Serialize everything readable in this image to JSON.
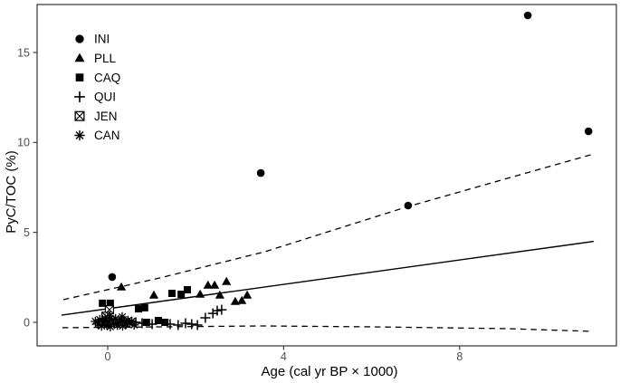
{
  "colors": {
    "marker": "#000000",
    "line": "#000000",
    "axis_text": "#4d4d4d",
    "panel_border": "#333333",
    "background": "#ffffff"
  },
  "chart_data": {
    "type": "scatter",
    "title": "",
    "xlabel": "Age (cal yr BP × 1000)",
    "ylabel": "PyC/TOC (%)",
    "x_ticks": [
      0,
      4,
      8
    ],
    "y_ticks": [
      0,
      5,
      10,
      15
    ],
    "xlim": [
      -1.6,
      11.56
    ],
    "ylim": [
      -1.31,
      17.66
    ],
    "grid": false,
    "legend_position": "inside-top-left",
    "series": [
      {
        "name": "INI",
        "marker": "filled-circle",
        "points": [
          [
            0.1,
            2.52
          ],
          [
            3.48,
            8.3
          ],
          [
            6.83,
            6.49
          ],
          [
            9.55,
            17.06
          ],
          [
            10.93,
            10.62
          ]
        ]
      },
      {
        "name": "PLL",
        "marker": "filled-triangle",
        "points": [
          [
            0.31,
            1.96
          ],
          [
            1.05,
            1.51
          ],
          [
            2.1,
            1.56
          ],
          [
            2.28,
            2.06
          ],
          [
            2.43,
            2.06
          ],
          [
            2.55,
            1.51
          ],
          [
            2.7,
            2.26
          ],
          [
            2.9,
            1.16
          ],
          [
            3.05,
            1.21
          ],
          [
            3.17,
            1.51
          ]
        ]
      },
      {
        "name": "CAQ",
        "marker": "filled-square",
        "points": [
          [
            -0.12,
            1.06
          ],
          [
            0.06,
            1.06
          ],
          [
            0.7,
            0.75
          ],
          [
            0.84,
            0.81
          ],
          [
            1.46,
            1.61
          ],
          [
            1.67,
            1.56
          ],
          [
            1.81,
            1.81
          ],
          [
            0.88,
            0.0
          ],
          [
            1.15,
            0.1
          ],
          [
            1.3,
            0.0
          ]
        ]
      },
      {
        "name": "QUI",
        "marker": "plus",
        "points": [
          [
            0.64,
            0.0
          ],
          [
            0.78,
            -0.05
          ],
          [
            1.01,
            -0.1
          ],
          [
            1.42,
            -0.1
          ],
          [
            1.6,
            -0.15
          ],
          [
            1.77,
            -0.05
          ],
          [
            1.91,
            -0.1
          ],
          [
            2.04,
            -0.15
          ],
          [
            2.22,
            0.25
          ],
          [
            2.39,
            0.5
          ],
          [
            2.49,
            0.65
          ],
          [
            2.59,
            0.7
          ]
        ]
      },
      {
        "name": "JEN",
        "marker": "boxed-x",
        "points": [
          [
            0.04,
            0.7
          ],
          [
            -0.04,
            0.33
          ]
        ]
      },
      {
        "name": "CAN",
        "marker": "asterisk",
        "points": [
          [
            -0.28,
            0.05
          ],
          [
            -0.22,
            -0.1
          ],
          [
            -0.18,
            0.15
          ],
          [
            -0.14,
            -0.2
          ],
          [
            -0.1,
            0.02
          ],
          [
            -0.06,
            0.22
          ],
          [
            -0.02,
            -0.14
          ],
          [
            0.02,
            0.06
          ],
          [
            0.06,
            -0.24
          ],
          [
            0.1,
            0.12
          ],
          [
            0.14,
            -0.05
          ],
          [
            0.18,
            0.2
          ],
          [
            0.22,
            -0.16
          ],
          [
            0.26,
            0.0
          ],
          [
            0.3,
            0.15
          ],
          [
            0.34,
            -0.2
          ],
          [
            0.38,
            0.05
          ],
          [
            0.42,
            -0.1
          ],
          [
            0.46,
            0.1
          ],
          [
            0.5,
            -0.05
          ],
          [
            0.55,
            0.06
          ],
          [
            0.6,
            -0.14
          ],
          [
            0.05,
            0.35
          ],
          [
            0.33,
            0.3
          ]
        ]
      }
    ],
    "regression": {
      "solid_line": [
        [
          -1.05,
          0.4
        ],
        [
          11.05,
          4.5
        ]
      ],
      "upper_dashed": [
        [
          -1.01,
          1.26
        ],
        [
          1.19,
          2.47
        ],
        [
          3.58,
          3.93
        ],
        [
          6.83,
          6.44
        ],
        [
          11.05,
          9.36
        ]
      ],
      "lower_dashed": [
        [
          -1.03,
          -0.3
        ],
        [
          3.52,
          -0.2
        ],
        [
          6.0,
          -0.25
        ],
        [
          9.07,
          -0.35
        ],
        [
          10.99,
          -0.5
        ]
      ]
    }
  }
}
